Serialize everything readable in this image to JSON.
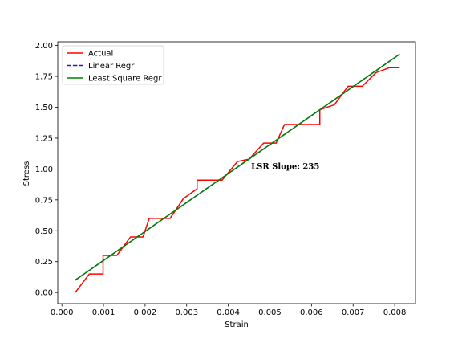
{
  "chart_data": {
    "type": "line",
    "title": "",
    "xlabel": "Strain",
    "ylabel": "Stress",
    "xlim": [
      -0.0001,
      0.0085
    ],
    "ylim": [
      -0.09,
      2.03
    ],
    "xticks": [
      0.0,
      0.001,
      0.002,
      0.003,
      0.004,
      0.005,
      0.006,
      0.007,
      0.008
    ],
    "xtick_labels": [
      "0.000",
      "0.001",
      "0.002",
      "0.003",
      "0.004",
      "0.005",
      "0.006",
      "0.007",
      "0.008"
    ],
    "yticks": [
      0.0,
      0.25,
      0.5,
      0.75,
      1.0,
      1.25,
      1.5,
      1.75,
      2.0
    ],
    "ytick_labels": [
      "0.00",
      "0.25",
      "0.50",
      "0.75",
      "1.00",
      "1.25",
      "1.50",
      "1.75",
      "2.00"
    ],
    "grid": false,
    "legend_position": "top-left",
    "series": [
      {
        "name": "Actual",
        "color": "#ff0000",
        "style": "solid",
        "x": [
          0.00032,
          0.00066,
          0.00099,
          0.00099,
          0.00132,
          0.00165,
          0.00195,
          0.0021,
          0.0026,
          0.00292,
          0.00325,
          0.00325,
          0.00385,
          0.00422,
          0.0045,
          0.00485,
          0.00515,
          0.00535,
          0.00578,
          0.0062,
          0.0062,
          0.00655,
          0.00688,
          0.00722,
          0.00755,
          0.00787,
          0.00812
        ],
        "y": [
          0.0,
          0.15,
          0.15,
          0.3,
          0.3,
          0.45,
          0.45,
          0.6,
          0.6,
          0.76,
          0.84,
          0.91,
          0.91,
          1.06,
          1.08,
          1.21,
          1.21,
          1.36,
          1.36,
          1.36,
          1.48,
          1.52,
          1.67,
          1.67,
          1.78,
          1.82,
          1.82
        ]
      },
      {
        "name": "Linear Regr",
        "color": "#1f1fbf",
        "style": "dashed",
        "x": [
          0.00032,
          0.00812
        ],
        "y": [
          0.1,
          1.93
        ]
      },
      {
        "name": "Least Square Regr",
        "color": "#008000",
        "style": "solid",
        "x": [
          0.00032,
          0.00812
        ],
        "y": [
          0.1,
          1.93
        ]
      }
    ],
    "annotation": {
      "text": "LSR Slope: 235",
      "x": 0.00455,
      "y": 1.0
    }
  }
}
